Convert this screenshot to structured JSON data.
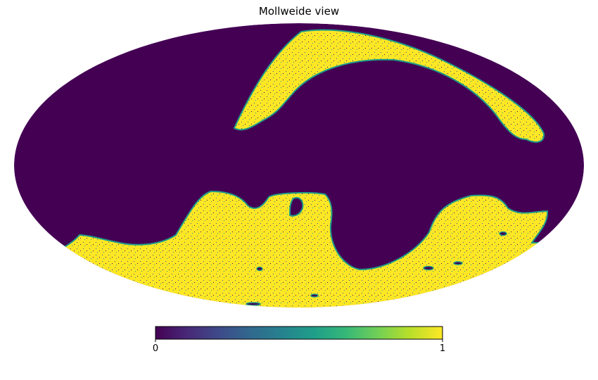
{
  "title": "Mollweide view",
  "projection": "Mollweide",
  "colormap": {
    "name": "viridis",
    "low_color": "#440154",
    "high_color": "#fde725",
    "stops": [
      "#440154",
      "#482878",
      "#3e4a89",
      "#31688e",
      "#26828e",
      "#1f9e89",
      "#35b779",
      "#6ece58",
      "#b5de2b",
      "#fde725"
    ]
  },
  "colorbar": {
    "min_label": "0",
    "max_label": "1",
    "range": [
      0,
      1
    ]
  },
  "map_values": {
    "background_value": 0,
    "feature_value": 1,
    "features": [
      "northern arc region",
      "southern region",
      "small islands"
    ]
  }
}
